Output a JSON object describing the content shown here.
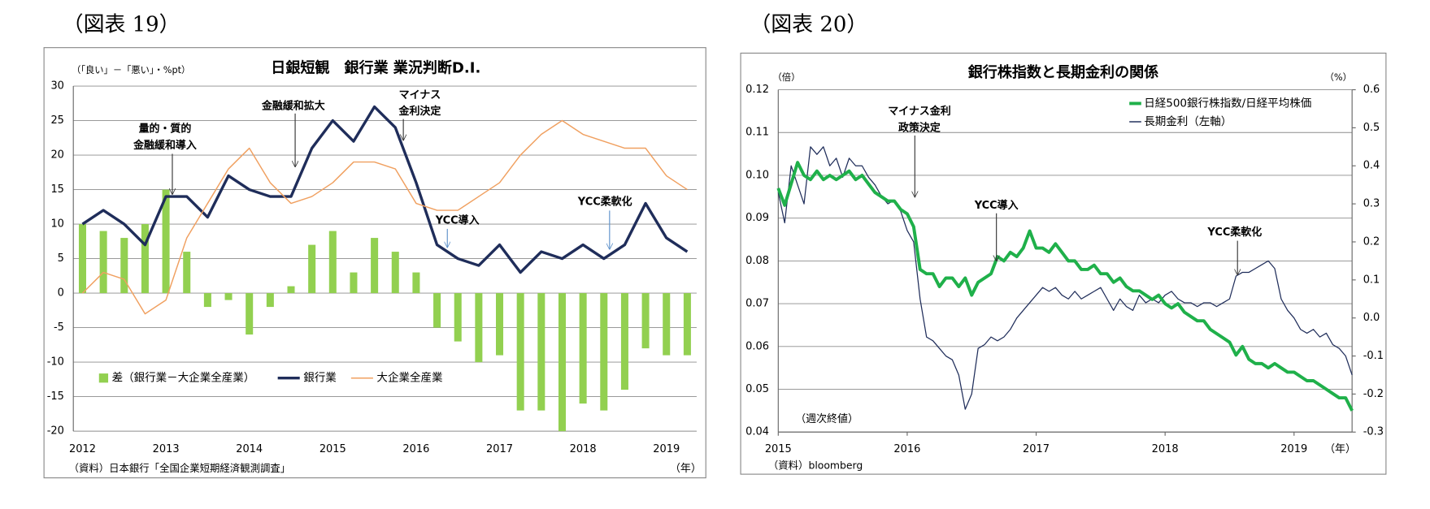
{
  "chart_data": [
    {
      "type": "bar",
      "figure_label": "（図表 19）",
      "title": "日銀短観　銀行業 業況判断D.I.",
      "y_label": "（「良い」－「悪い」・%pt）",
      "x_unit": "（年）",
      "source": "（資料）日本銀行「全国企業短期経済観測調査」",
      "categories": [
        "2012",
        null,
        null,
        null,
        "2013",
        null,
        null,
        null,
        "2014",
        null,
        null,
        null,
        "2015",
        null,
        null,
        null,
        "2016",
        null,
        null,
        null,
        "2017",
        null,
        null,
        null,
        "2018",
        null,
        null,
        null,
        "2019",
        null
      ],
      "series": [
        {
          "name": "差（銀行業－大企業全産業）",
          "type": "bar",
          "color": "#92d050",
          "values": [
            10,
            9,
            8,
            10,
            15,
            6,
            -2,
            -1,
            -6,
            -2,
            1,
            7,
            9,
            3,
            8,
            6,
            3,
            -5,
            -7,
            -10,
            -9,
            -17,
            -17,
            -20,
            -16,
            -17,
            -14,
            -8,
            -9,
            -9
          ]
        },
        {
          "name": "銀行業",
          "type": "line",
          "color": "#1f2d5a",
          "values": [
            10,
            12,
            10,
            7,
            14,
            14,
            11,
            17,
            15,
            14,
            14,
            21,
            25,
            22,
            27,
            24,
            16,
            7,
            5,
            4,
            7,
            3,
            6,
            5,
            7,
            5,
            7,
            13,
            8,
            6
          ]
        },
        {
          "name": "大企業全産業",
          "type": "line",
          "color": "#f0a060",
          "values": [
            0,
            3,
            2,
            -3,
            -1,
            8,
            13,
            18,
            21,
            16,
            13,
            14,
            16,
            19,
            19,
            18,
            13,
            12,
            12,
            14,
            16,
            20,
            23,
            25,
            23,
            22,
            21,
            21,
            17,
            15
          ]
        }
      ],
      "ylim": [
        -20,
        30
      ],
      "yticks": [
        -20,
        -15,
        -10,
        -5,
        0,
        5,
        10,
        15,
        20,
        25,
        30
      ],
      "grid": true,
      "annotations": [
        {
          "text": [
            "量的・質的",
            "金融緩和導入"
          ]
        },
        {
          "text": [
            "金融緩和拡大"
          ]
        },
        {
          "text": [
            "マイナス",
            "金利決定"
          ]
        },
        {
          "text": [
            "YCC導入"
          ]
        },
        {
          "text": [
            "YCC柔軟化"
          ]
        }
      ]
    },
    {
      "type": "line",
      "figure_label": "（図表 20）",
      "title": "銀行株指数と長期金利の関係",
      "y_label": "（倍）",
      "y2_label": "（%）",
      "x_unit": "（年）",
      "note": "（週次終値）",
      "source": "（資料）bloomberg",
      "x": [
        2015,
        2015.05,
        2015.1,
        2015.15,
        2015.2,
        2015.25,
        2015.3,
        2015.35,
        2015.4,
        2015.45,
        2015.5,
        2015.55,
        2015.6,
        2015.65,
        2015.7,
        2015.75,
        2015.8,
        2015.85,
        2015.9,
        2015.95,
        2016,
        2016.05,
        2016.1,
        2016.15,
        2016.2,
        2016.25,
        2016.3,
        2016.35,
        2016.4,
        2016.45,
        2016.5,
        2016.55,
        2016.6,
        2016.65,
        2016.7,
        2016.75,
        2016.8,
        2016.85,
        2016.9,
        2016.95,
        2017,
        2017.05,
        2017.1,
        2017.15,
        2017.2,
        2017.25,
        2017.3,
        2017.35,
        2017.4,
        2017.45,
        2017.5,
        2017.55,
        2017.6,
        2017.65,
        2017.7,
        2017.75,
        2017.8,
        2017.85,
        2017.9,
        2017.95,
        2018,
        2018.05,
        2018.1,
        2018.15,
        2018.2,
        2018.25,
        2018.3,
        2018.35,
        2018.4,
        2018.45,
        2018.5,
        2018.55,
        2018.6,
        2018.65,
        2018.7,
        2018.75,
        2018.8,
        2018.85,
        2018.9,
        2018.95,
        2019,
        2019.05,
        2019.1,
        2019.15,
        2019.2,
        2019.25,
        2019.3,
        2019.35,
        2019.4,
        2019.45
      ],
      "series": [
        {
          "name": "日経500銀行株指数/日経平均株価",
          "axis": "y",
          "color": "#1fb04a",
          "values": [
            0.097,
            0.093,
            0.098,
            0.103,
            0.1,
            0.099,
            0.101,
            0.099,
            0.1,
            0.099,
            0.1,
            0.101,
            0.099,
            0.1,
            0.098,
            0.096,
            0.095,
            0.094,
            0.094,
            0.092,
            0.091,
            0.088,
            0.078,
            0.077,
            0.077,
            0.074,
            0.076,
            0.076,
            0.074,
            0.076,
            0.072,
            0.075,
            0.076,
            0.077,
            0.081,
            0.08,
            0.082,
            0.081,
            0.083,
            0.087,
            0.083,
            0.083,
            0.082,
            0.084,
            0.082,
            0.08,
            0.08,
            0.078,
            0.078,
            0.079,
            0.077,
            0.077,
            0.075,
            0.076,
            0.074,
            0.073,
            0.073,
            0.072,
            0.071,
            0.072,
            0.07,
            0.069,
            0.07,
            0.068,
            0.067,
            0.066,
            0.066,
            0.064,
            0.063,
            0.062,
            0.061,
            0.058,
            0.06,
            0.057,
            0.056,
            0.056,
            0.055,
            0.056,
            0.055,
            0.054,
            0.054,
            0.053,
            0.052,
            0.052,
            0.051,
            0.05,
            0.049,
            0.048,
            0.048,
            0.045
          ]
        },
        {
          "name": "長期金利（左軸）",
          "axis": "y2",
          "color": "#1f2d5a",
          "values": [
            0.33,
            0.25,
            0.4,
            0.35,
            0.3,
            0.45,
            0.43,
            0.45,
            0.4,
            0.42,
            0.37,
            0.42,
            0.4,
            0.4,
            0.37,
            0.35,
            0.32,
            0.3,
            0.31,
            0.28,
            0.23,
            0.2,
            0.05,
            -0.05,
            -0.06,
            -0.08,
            -0.1,
            -0.11,
            -0.15,
            -0.24,
            -0.2,
            -0.08,
            -0.07,
            -0.05,
            -0.06,
            -0.05,
            -0.03,
            0,
            0.02,
            0.04,
            0.06,
            0.08,
            0.07,
            0.08,
            0.06,
            0.05,
            0.07,
            0.05,
            0.06,
            0.07,
            0.08,
            0.05,
            0.02,
            0.05,
            0.03,
            0.02,
            0.06,
            0.04,
            0.05,
            0.04,
            0.06,
            0.07,
            0.05,
            0.04,
            0.04,
            0.03,
            0.04,
            0.04,
            0.03,
            0.04,
            0.05,
            0.11,
            0.12,
            0.12,
            0.13,
            0.14,
            0.15,
            0.13,
            0.05,
            0.02,
            0,
            -0.03,
            -0.04,
            -0.03,
            -0.05,
            -0.04,
            -0.07,
            -0.08,
            -0.1,
            -0.15
          ]
        }
      ],
      "xlim": [
        2015,
        2019.45
      ],
      "xticks": [
        2015,
        2016,
        2017,
        2018,
        2019
      ],
      "ylim": [
        0.04,
        0.12
      ],
      "yticks": [
        0.04,
        0.05,
        0.06,
        0.07,
        0.08,
        0.09,
        {
          "value": 0.1,
          "label": "0.10"
        },
        0.11,
        0.12
      ],
      "y2lim": [
        -0.3,
        0.6
      ],
      "y2ticks": [
        -0.3,
        -0.2,
        -0.1,
        {
          "value": 0,
          "label": "0.0"
        },
        0.1,
        0.2,
        0.3,
        0.4,
        0.5,
        0.6
      ],
      "grid": true,
      "annotations": [
        {
          "text": [
            "マイナス金利",
            "政策決定"
          ]
        },
        {
          "text": [
            "YCC導入"
          ]
        },
        {
          "text": [
            "YCC柔軟化"
          ]
        }
      ]
    }
  ]
}
